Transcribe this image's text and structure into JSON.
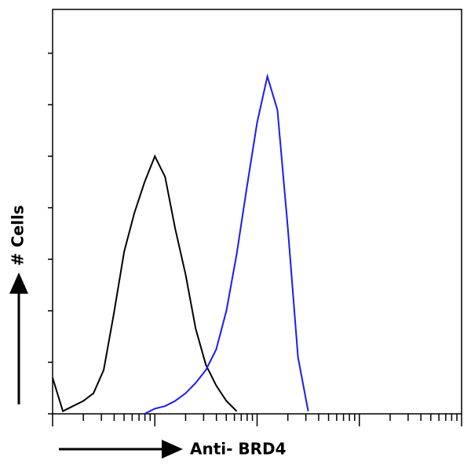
{
  "chart_data": {
    "type": "line",
    "xlabel": "Anti- BRD4",
    "ylabel": "# Cells",
    "x": [
      1,
      1.26,
      1.58,
      2,
      2.51,
      3.16,
      3.98,
      5.01,
      6.31,
      7.94,
      10,
      12.6,
      15.8,
      20,
      25.1,
      31.6,
      39.8,
      50.1,
      63.1,
      79.4,
      100,
      126,
      158,
      200,
      251,
      316
    ],
    "series": [
      {
        "color": "#000000",
        "values": [
          14,
          1,
          3,
          5,
          8,
          17,
          39,
          63,
          78,
          90,
          100,
          92,
          72,
          54,
          33,
          19,
          11,
          5,
          1,
          null,
          null,
          null,
          null,
          null,
          null,
          null
        ]
      },
      {
        "color": "#1a1aff",
        "values": [
          null,
          null,
          null,
          null,
          null,
          null,
          null,
          null,
          null,
          0,
          2,
          3,
          5,
          8,
          12,
          17,
          25,
          40,
          62,
          88,
          113,
          131,
          118,
          72,
          22,
          1
        ]
      }
    ],
    "xscale": "log",
    "xlim": [
      1,
      10000
    ],
    "xticks": [
      1,
      2,
      3,
      4,
      5,
      6,
      7,
      8,
      9,
      10,
      20,
      30,
      40,
      50,
      60,
      70,
      80,
      90,
      100,
      200,
      300,
      400,
      500,
      600,
      700,
      800,
      900,
      1000,
      2000,
      3000,
      4000,
      5000,
      6000,
      7000,
      8000,
      9000,
      10000
    ],
    "ylim": [
      0,
      157
    ],
    "yticks": [
      0,
      20,
      40,
      60,
      80,
      100,
      120,
      140
    ]
  }
}
